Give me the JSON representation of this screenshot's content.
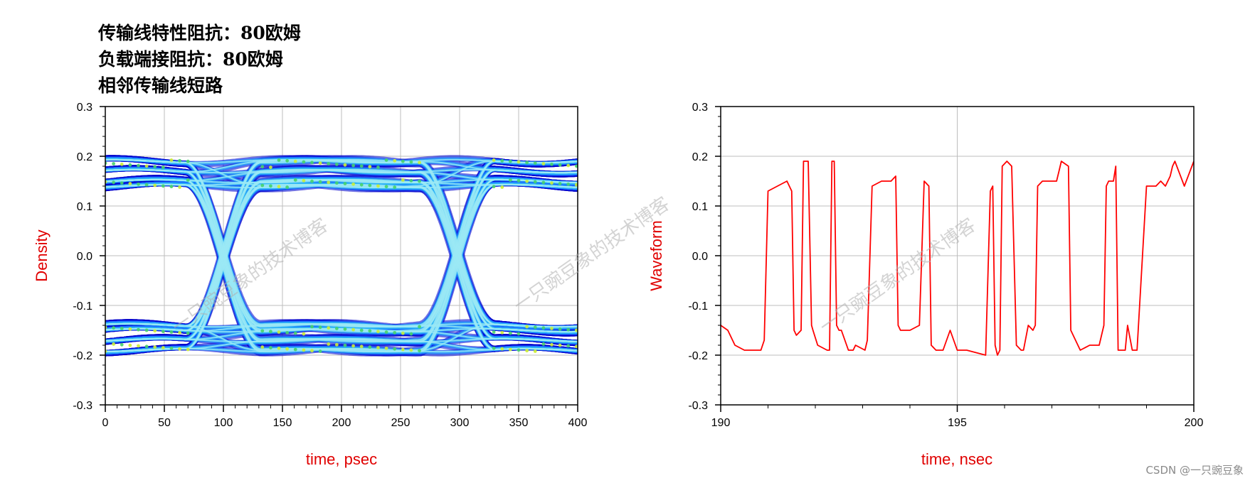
{
  "title_lines": [
    "传输线特性阻抗：80欧姆",
    "负载端接阻抗：80欧姆",
    "相邻传输线短路"
  ],
  "watermark": "一只豌豆象的技术博客",
  "credit": "CSDN @一只豌豆象",
  "colors": {
    "axis_label": "#e00000",
    "waveform": "#ff0000",
    "grid": "#bdbdbd"
  },
  "chart_data": [
    {
      "type": "heatmap",
      "subtype": "eye-diagram density",
      "xlabel": "time, psec",
      "ylabel": "Density",
      "xlim": [
        0,
        400
      ],
      "ylim": [
        -0.3,
        0.3
      ],
      "xticks": [
        "0",
        "50",
        "100",
        "150",
        "200",
        "250",
        "300",
        "350",
        "400"
      ],
      "yticks": [
        "-0.3",
        "-0.2",
        "-0.1",
        "0.0",
        "0.1",
        "0.2",
        "0.3"
      ],
      "grid": true,
      "levels": [
        -0.19,
        -0.17,
        -0.15,
        -0.14,
        0.14,
        0.15,
        0.17,
        0.19
      ],
      "crossings": [
        100,
        298
      ],
      "palette": [
        "#0000cc",
        "#1e6bff",
        "#29b6f6",
        "#9be8f5",
        "#46d36b",
        "#ccee33"
      ]
    },
    {
      "type": "line",
      "xlabel": "time, nsec",
      "ylabel": "Waveform",
      "xlim": [
        190,
        200
      ],
      "ylim": [
        -0.3,
        0.3
      ],
      "xticks": [
        "190",
        "195",
        "200"
      ],
      "yticks": [
        "-0.3",
        "-0.2",
        "-0.1",
        "0.0",
        "0.1",
        "0.2",
        "0.3"
      ],
      "grid": true,
      "series": [
        {
          "color": "#ff0000",
          "x": [
            190.0,
            190.15,
            190.3,
            190.5,
            190.7,
            190.85,
            190.92,
            191.0,
            191.2,
            191.4,
            191.5,
            191.55,
            191.6,
            191.7,
            191.75,
            191.78,
            191.85,
            191.92,
            191.95,
            192.05,
            192.25,
            192.3,
            192.35,
            192.4,
            192.45,
            192.5,
            192.55,
            192.7,
            192.8,
            192.85,
            193.05,
            193.1,
            193.2,
            193.4,
            193.6,
            193.7,
            193.75,
            193.8,
            194.0,
            194.2,
            194.3,
            194.4,
            194.45,
            194.55,
            194.6,
            194.7,
            194.85,
            195.0,
            195.1,
            195.2,
            195.6,
            195.7,
            195.75,
            195.8,
            195.85,
            195.9,
            195.95,
            196.05,
            196.15,
            196.25,
            196.35,
            196.4,
            196.5,
            196.6,
            196.65,
            196.7,
            196.8,
            197.0,
            197.1,
            197.15,
            197.2,
            197.35,
            197.4,
            197.6,
            197.8,
            198.0,
            198.1,
            198.15,
            198.2,
            198.3,
            198.35,
            198.4,
            198.55,
            198.6,
            198.7,
            198.8,
            199.0,
            199.2,
            199.3,
            199.4,
            199.5,
            199.55,
            199.6,
            199.8,
            200.0
          ],
          "y": [
            -0.14,
            -0.15,
            -0.18,
            -0.19,
            -0.19,
            -0.19,
            -0.17,
            0.13,
            0.14,
            0.15,
            0.13,
            -0.15,
            -0.16,
            -0.15,
            0.19,
            0.19,
            0.19,
            -0.14,
            -0.15,
            -0.18,
            -0.19,
            -0.19,
            0.19,
            0.19,
            -0.14,
            -0.15,
            -0.15,
            -0.19,
            -0.19,
            -0.18,
            -0.19,
            -0.17,
            0.14,
            0.15,
            0.15,
            0.16,
            -0.14,
            -0.15,
            -0.15,
            -0.14,
            0.15,
            0.14,
            -0.18,
            -0.19,
            -0.19,
            -0.19,
            -0.15,
            -0.19,
            -0.19,
            -0.19,
            -0.2,
            0.13,
            0.14,
            -0.18,
            -0.2,
            -0.19,
            0.18,
            0.19,
            0.18,
            -0.18,
            -0.19,
            -0.19,
            -0.14,
            -0.15,
            -0.14,
            0.14,
            0.15,
            0.15,
            0.15,
            0.17,
            0.19,
            0.18,
            -0.15,
            -0.19,
            -0.18,
            -0.18,
            -0.14,
            0.14,
            0.15,
            0.15,
            0.18,
            -0.19,
            -0.19,
            -0.14,
            -0.19,
            -0.19,
            0.14,
            0.14,
            0.15,
            0.14,
            0.16,
            0.18,
            0.19,
            0.14,
            0.19
          ]
        }
      ]
    }
  ]
}
